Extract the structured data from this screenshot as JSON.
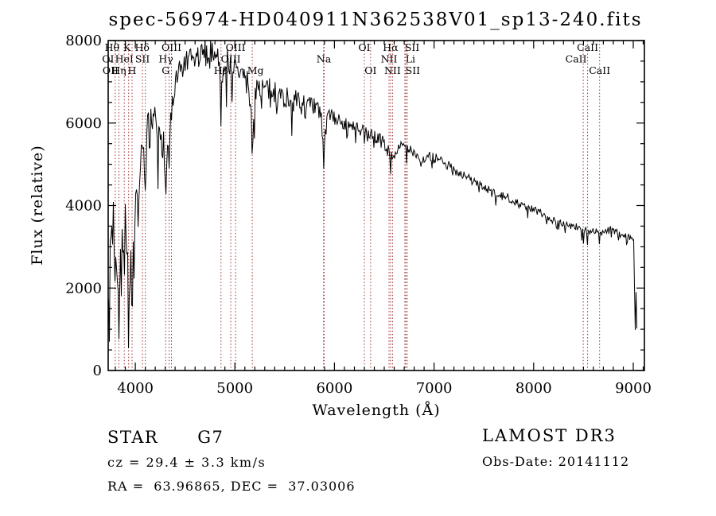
{
  "annotations": {
    "class_line": "STAR      G7",
    "cz_line": "cz = 29.4 ± 3.3 km/s",
    "radec_line": "RA =  63.96865, DEC =  37.03006",
    "survey": "LAMOST DR3",
    "obs_date": "Obs-Date: 20141112"
  },
  "chart_data": {
    "type": "line",
    "title": "spec-56974-HD040911N362538V01_sp13-240.fits",
    "xlabel": "Wavelength (Å)",
    "ylabel": "Flux (relative)",
    "xlim": [
      3728,
      9112
    ],
    "ylim": [
      0,
      8000
    ],
    "xticks": [
      4000,
      5000,
      6000,
      7000,
      8000,
      9000
    ],
    "xminor_step": 100,
    "yticks": [
      0,
      2000,
      4000,
      6000,
      8000
    ],
    "yminor_step": 500,
    "grid": false,
    "legend": false,
    "spectrum_color": "#000000",
    "marker_color": "#9e2f2f",
    "marker_lines": [
      3727,
      3798,
      3835,
      3889,
      3933,
      3968,
      4072,
      4101,
      4305,
      4340,
      4363,
      4861,
      4959,
      5007,
      5175,
      5890,
      5896,
      6300,
      6363,
      6548,
      6563,
      6583,
      6707,
      6716,
      6731,
      8498,
      8542,
      8662
    ],
    "line_labels": [
      {
        "text": "Hθ",
        "row": 1,
        "wavelength": 3798,
        "dx": -4
      },
      {
        "text": "K",
        "row": 1,
        "wavelength": 3933,
        "dx": -2
      },
      {
        "text": "Hδ",
        "row": 1,
        "wavelength": 4101,
        "dx": -4
      },
      {
        "text": "OIII",
        "row": 1,
        "wavelength": 4363
      },
      {
        "text": "OIII",
        "row": 1,
        "wavelength": 5007
      },
      {
        "text": "OI",
        "row": 1,
        "wavelength": 6300
      },
      {
        "text": "Hα",
        "row": 1,
        "wavelength": 6563
      },
      {
        "text": "SII",
        "row": 1,
        "wavelength": 6716,
        "dx": 8
      },
      {
        "text": "CaII",
        "row": 1,
        "wavelength": 8542
      },
      {
        "text": "OI",
        "row": 2,
        "wavelength": 3727
      },
      {
        "text": "HeI",
        "row": 2,
        "wavelength": 3889
      },
      {
        "text": "SII",
        "row": 2,
        "wavelength": 4072
      },
      {
        "text": "Hγ",
        "row": 2,
        "wavelength": 4340,
        "dx": -4
      },
      {
        "text": "OIII",
        "row": 2,
        "wavelength": 4959
      },
      {
        "text": "Na",
        "row": 2,
        "wavelength": 5893
      },
      {
        "text": "NII",
        "row": 2,
        "wavelength": 6548
      },
      {
        "text": "Li",
        "row": 2,
        "wavelength": 6707,
        "dx": 7
      },
      {
        "text": "CaII",
        "row": 2,
        "wavelength": 8498,
        "dx": -9
      },
      {
        "text": "OII",
        "row": 3,
        "wavelength": 3727,
        "dx": 3
      },
      {
        "text": "Hη",
        "row": 3,
        "wavelength": 3835
      },
      {
        "text": "H",
        "row": 3,
        "wavelength": 3968
      },
      {
        "text": "G",
        "row": 3,
        "wavelength": 4305
      },
      {
        "text": "Hβ",
        "row": 3,
        "wavelength": 4861
      },
      {
        "text": "Mg",
        "row": 3,
        "wavelength": 5175,
        "dx": 4
      },
      {
        "text": "OI",
        "row": 3,
        "wavelength": 6363
      },
      {
        "text": "NII",
        "row": 3,
        "wavelength": 6583
      },
      {
        "text": "SII",
        "row": 3,
        "wavelength": 6731,
        "dx": 7
      },
      {
        "text": "CaII",
        "row": 3,
        "wavelength": 8662
      }
    ],
    "continuum": [
      [
        3730,
        2600
      ],
      [
        3755,
        3300
      ],
      [
        3780,
        3600
      ],
      [
        3805,
        3100
      ],
      [
        3830,
        2500
      ],
      [
        3855,
        2900
      ],
      [
        3880,
        3500
      ],
      [
        3905,
        3600
      ],
      [
        3930,
        2200
      ],
      [
        3955,
        2700
      ],
      [
        3980,
        2600
      ],
      [
        4005,
        3900
      ],
      [
        4035,
        4600
      ],
      [
        4065,
        5100
      ],
      [
        4095,
        5500
      ],
      [
        4130,
        5800
      ],
      [
        4170,
        5950
      ],
      [
        4215,
        5950
      ],
      [
        4255,
        5800
      ],
      [
        4290,
        5400
      ],
      [
        4310,
        5000
      ],
      [
        4335,
        5500
      ],
      [
        4370,
        6400
      ],
      [
        4410,
        6950
      ],
      [
        4460,
        7300
      ],
      [
        4520,
        7450
      ],
      [
        4580,
        7500
      ],
      [
        4640,
        7600
      ],
      [
        4700,
        7700
      ],
      [
        4760,
        7750
      ],
      [
        4820,
        7800
      ],
      [
        4861,
        7100
      ],
      [
        4900,
        7550
      ],
      [
        4960,
        7450
      ],
      [
        5020,
        7250
      ],
      [
        5080,
        7150
      ],
      [
        5140,
        6900
      ],
      [
        5175,
        6000
      ],
      [
        5215,
        6950
      ],
      [
        5280,
        6850
      ],
      [
        5360,
        6780
      ],
      [
        5450,
        6680
      ],
      [
        5550,
        6580
      ],
      [
        5650,
        6480
      ],
      [
        5750,
        6380
      ],
      [
        5850,
        6300
      ],
      [
        5893,
        5600
      ],
      [
        5940,
        6220
      ],
      [
        6030,
        6080
      ],
      [
        6120,
        5960
      ],
      [
        6210,
        5870
      ],
      [
        6300,
        5780
      ],
      [
        6390,
        5680
      ],
      [
        6480,
        5600
      ],
      [
        6563,
        5200
      ],
      [
        6650,
        5450
      ],
      [
        6740,
        5350
      ],
      [
        6820,
        5280
      ],
      [
        6870,
        5050
      ],
      [
        6930,
        5230
      ],
      [
        7020,
        5130
      ],
      [
        7120,
        5000
      ],
      [
        7220,
        4850
      ],
      [
        7320,
        4700
      ],
      [
        7420,
        4550
      ],
      [
        7520,
        4420
      ],
      [
        7600,
        4280
      ],
      [
        7650,
        4200
      ],
      [
        7720,
        4230
      ],
      [
        7800,
        4120
      ],
      [
        7900,
        3980
      ],
      [
        8000,
        3900
      ],
      [
        8100,
        3780
      ],
      [
        8200,
        3650
      ],
      [
        8300,
        3570
      ],
      [
        8400,
        3500
      ],
      [
        8470,
        3460
      ],
      [
        8530,
        3400
      ],
      [
        8600,
        3380
      ],
      [
        8700,
        3330
      ],
      [
        8780,
        3420
      ],
      [
        8850,
        3330
      ],
      [
        8920,
        3260
      ],
      [
        8990,
        3210
      ],
      [
        9010,
        3150
      ],
      [
        9025,
        2200
      ],
      [
        9040,
        700
      ]
    ],
    "absorption_dips": [
      [
        3740,
        700,
        6
      ],
      [
        3798,
        1600,
        6
      ],
      [
        3835,
        500,
        8
      ],
      [
        3860,
        1800,
        6
      ],
      [
        3889,
        1400,
        7
      ],
      [
        3912,
        2200,
        5
      ],
      [
        3933,
        300,
        8
      ],
      [
        3950,
        1900,
        5
      ],
      [
        3968,
        500,
        8
      ],
      [
        3990,
        1700,
        5
      ],
      [
        4026,
        3000,
        6
      ],
      [
        4101,
        4200,
        8
      ],
      [
        4144,
        4500,
        6
      ],
      [
        4226,
        3800,
        7
      ],
      [
        4305,
        3900,
        9
      ],
      [
        4340,
        4900,
        8
      ],
      [
        4383,
        6300,
        6
      ],
      [
        4861,
        5750,
        8
      ],
      [
        5175,
        4900,
        10
      ],
      [
        5270,
        6000,
        5
      ],
      [
        5893,
        4800,
        9
      ],
      [
        6122,
        5400,
        5
      ],
      [
        6300,
        5500,
        5
      ],
      [
        6563,
        4700,
        8
      ],
      [
        6870,
        4900,
        7
      ],
      [
        7186,
        4650,
        6
      ],
      [
        7620,
        4000,
        8
      ],
      [
        8230,
        3350,
        5
      ],
      [
        8498,
        2900,
        6
      ],
      [
        8542,
        2870,
        6
      ],
      [
        8662,
        2920,
        6
      ],
      [
        9018,
        600,
        10
      ]
    ],
    "noise_amplitude": [
      [
        3730,
        950
      ],
      [
        3990,
        800
      ],
      [
        4010,
        480
      ],
      [
        4340,
        420
      ],
      [
        4380,
        330
      ],
      [
        5150,
        330
      ],
      [
        5250,
        300
      ],
      [
        5880,
        280
      ],
      [
        5950,
        170
      ],
      [
        6500,
        150
      ],
      [
        6800,
        130
      ],
      [
        7600,
        110
      ],
      [
        8400,
        95
      ],
      [
        9000,
        85
      ]
    ]
  }
}
